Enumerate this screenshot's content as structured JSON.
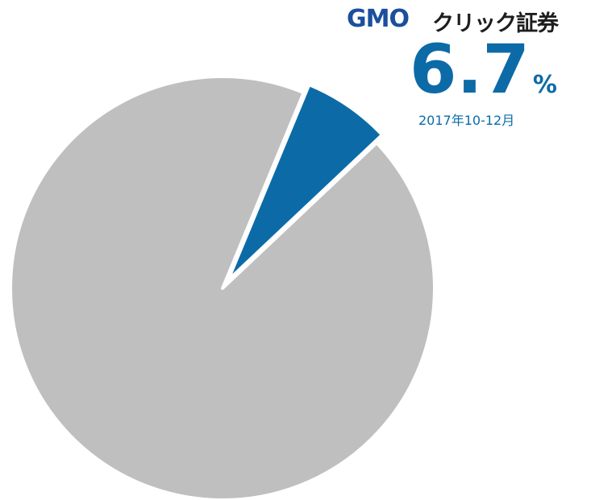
{
  "logo": {
    "text_latin": "GMO",
    "text_jp": "クリック証券"
  },
  "headline": {
    "value": "6.7",
    "unit": "%",
    "period": "2017年10-12月"
  },
  "colors": {
    "highlight": "#0c6ba7",
    "rest": "#bfbfbf",
    "separator": "#ffffff"
  },
  "chart_data": {
    "type": "pie",
    "title": "",
    "slices": [
      {
        "value": 6.7,
        "color": "#0c6ba7",
        "highlighted": true
      },
      {
        "value": 93.3,
        "color": "#bfbfbf",
        "highlighted": false
      }
    ],
    "start_angle_deg": 22.5,
    "direction": "clockwise",
    "legend": "none"
  }
}
